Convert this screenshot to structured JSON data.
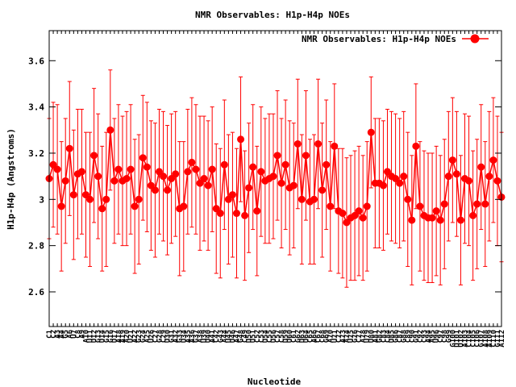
{
  "chart_data": {
    "type": "line",
    "title": "NMR Observables: H1p-H4p NOEs",
    "xlabel": "Nucleotide",
    "ylabel": "H1p-H4p (Angstroms)",
    "legend": {
      "label": "NMR Observables: H1p-H4p NOEs",
      "placement": "top-right"
    },
    "series_color": "#ff0000",
    "ylim": [
      2.45,
      3.73
    ],
    "y_ticks": [
      2.6,
      2.8,
      3.0,
      3.2,
      3.4,
      3.6
    ],
    "y_tick_labels": [
      "2.6",
      "2.8",
      "3",
      "3.2",
      "3.4",
      "3.6"
    ],
    "grid": false,
    "x_tick_labels": [
      "C1",
      "C2",
      "A3",
      "A4",
      "G5",
      "A6",
      "U7",
      "C8",
      "A9",
      "A10",
      "U11",
      "U12",
      "G13",
      "U14",
      "G15",
      "G16",
      "U17",
      "A18",
      "A19",
      "A20",
      "U21",
      "A22",
      "G23",
      "G24",
      "A25",
      "U26",
      "C27",
      "G28",
      "C29",
      "U30",
      "G31",
      "A32",
      "G33",
      "U34",
      "A35",
      "A36",
      "G37",
      "A38",
      "U39",
      "U40",
      "A41",
      "C42",
      "G43",
      "A44",
      "U45",
      "U46",
      "A47",
      "G48",
      "C49",
      "U50",
      "U51",
      "C52",
      "C53",
      "U54",
      "C55",
      "U56",
      "C57",
      "C58",
      "U59",
      "U60",
      "C61",
      "G62",
      "U63",
      "U64",
      "C65",
      "A66",
      "C67",
      "C68",
      "G69",
      "A70",
      "U71",
      "C72",
      "A73",
      "A74",
      "U75",
      "G76",
      "C77",
      "A78",
      "U79",
      "U80",
      "A81",
      "G82",
      "C83",
      "C84",
      "U85",
      "G86",
      "C87",
      "G88",
      "C89",
      "C90",
      "G91",
      "C92",
      "C93",
      "A94",
      "A95",
      "U96",
      "C97",
      "C98",
      "G99",
      "G100",
      "U101",
      "U102",
      "A103",
      "C104",
      "C105",
      "C106",
      "G107",
      "A108",
      "A109",
      "C110",
      "G111",
      "A112"
    ],
    "y_values": [
      3.09,
      3.15,
      3.13,
      2.97,
      3.08,
      3.22,
      3.02,
      3.11,
      3.12,
      3.02,
      3.0,
      3.19,
      3.1,
      2.96,
      3.0,
      3.3,
      3.08,
      3.13,
      3.08,
      3.09,
      3.13,
      2.97,
      3.0,
      3.18,
      3.14,
      3.06,
      3.04,
      3.12,
      3.1,
      3.04,
      3.09,
      3.11,
      2.96,
      2.97,
      3.12,
      3.16,
      3.13,
      3.07,
      3.09,
      3.06,
      3.13,
      2.96,
      2.94,
      3.15,
      3.0,
      3.02,
      2.94,
      3.26,
      2.93,
      3.05,
      3.14,
      2.95,
      3.12,
      3.08,
      3.09,
      3.1,
      3.19,
      3.07,
      3.15,
      3.05,
      3.06,
      3.24,
      3.0,
      3.19,
      2.99,
      3.0,
      3.24,
      3.04,
      3.15,
      2.97,
      3.23,
      2.95,
      2.94,
      2.9,
      2.92,
      2.93,
      2.95,
      2.92,
      2.97,
      3.29,
      3.07,
      3.07,
      3.06,
      3.12,
      3.1,
      3.09,
      3.07,
      3.1,
      3.0,
      2.91,
      3.23,
      2.97,
      2.93,
      2.92,
      2.92,
      2.95,
      2.91,
      2.98,
      3.1,
      3.17,
      3.11,
      2.91,
      3.09,
      3.08,
      2.93,
      2.98,
      3.14,
      2.98,
      3.1,
      3.17,
      3.08,
      3.01
    ],
    "y_error": [
      0.26,
      0.27,
      0.28,
      0.28,
      0.27,
      0.29,
      0.28,
      0.28,
      0.27,
      0.27,
      0.29,
      0.29,
      0.27,
      0.27,
      0.29,
      0.26,
      0.27,
      0.28,
      0.28,
      0.29,
      0.28,
      0.29,
      0.28,
      0.27,
      0.28,
      0.28,
      0.29,
      0.27,
      0.28,
      0.28,
      0.28,
      0.27,
      0.29,
      0.28,
      0.27,
      0.28,
      0.28,
      0.29,
      0.27,
      0.28,
      0.27,
      0.28,
      0.28,
      0.28,
      0.28,
      0.27,
      0.28,
      0.27,
      0.28,
      0.28,
      0.27,
      0.28,
      0.28,
      0.27,
      0.28,
      0.27,
      0.28,
      0.28,
      0.28,
      0.29,
      0.27,
      0.28,
      0.28,
      0.28,
      0.27,
      0.28,
      0.28,
      0.29,
      0.28,
      0.28,
      0.27,
      0.27,
      0.28,
      0.28,
      0.27,
      0.28,
      0.28,
      0.27,
      0.28,
      0.24,
      0.28,
      0.28,
      0.28,
      0.27,
      0.28,
      0.28,
      0.28,
      0.28,
      0.29,
      0.28,
      0.27,
      0.28,
      0.28,
      0.28,
      0.28,
      0.28,
      0.28,
      0.28,
      0.28,
      0.27,
      0.27,
      0.28,
      0.28,
      0.28,
      0.28,
      0.28,
      0.27,
      0.27,
      0.28,
      0.27,
      0.28,
      0.28
    ]
  }
}
